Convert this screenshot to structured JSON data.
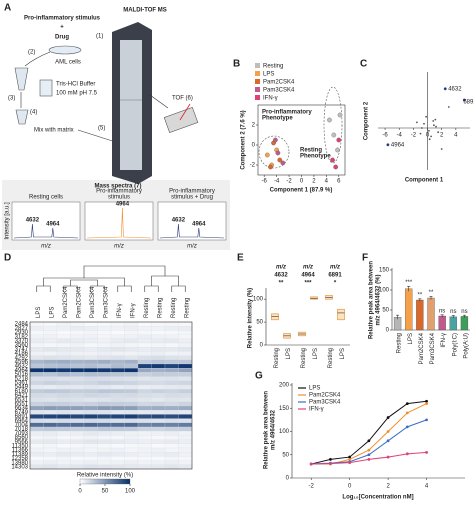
{
  "panel_a": {
    "label": "A",
    "instrument": "MALDI-TOF MS",
    "stimulus": "Pro-inflammatory stimulus",
    "plus": "+",
    "drug": "Drug",
    "step1": "(1)",
    "step2": "(2)",
    "cells": "AML cells",
    "step3": "(3)",
    "buffer": "Tris-HCl Buffer",
    "buffer_conc": "100 mM pH 7.5",
    "step4": "(4)",
    "mix": "Mix with matrix",
    "step5": "(5)",
    "tof": "TOF (6)",
    "spectra_title": "Mass spectra (7)",
    "spectra_x_label": "m/z",
    "spectra_y_label": "Intensity [a.u.]",
    "spectra": [
      {
        "caption": [
          "Resting cells"
        ],
        "peaks": [
          "4632",
          "4964"
        ]
      },
      {
        "caption": [
          "Pro-inflammatory",
          "stimulus"
        ],
        "peaks": [
          "4964"
        ]
      },
      {
        "caption": [
          "Pro-inflammatory",
          "stimulus + Drug"
        ],
        "peaks": [
          "4632",
          "4964"
        ]
      }
    ]
  },
  "panel_b": {
    "label": "B",
    "x_label": "Component 1 (87.9 %)",
    "y_label": "Component 2 (7.6 %)",
    "xlim": [
      -7,
      7
    ],
    "ylim": [
      -3,
      4
    ],
    "xticks": [
      -6,
      -4,
      -2,
      0,
      2,
      4,
      6
    ],
    "yticks": [
      -2,
      0,
      2
    ],
    "annotations": [
      [
        "Pro-inflammatory",
        "Phenotype"
      ],
      [
        "Resting",
        "Phenotype"
      ]
    ],
    "series": [
      {
        "name": "Resting",
        "color": "#bdbdbd",
        "x": [
          4.5,
          5.2,
          5.8,
          6.2
        ],
        "y": [
          2.5,
          1.0,
          -0.5,
          3.0
        ]
      },
      {
        "name": "LPS",
        "color": "#f5a04a",
        "x": [
          -5.5,
          -4.8,
          -4.0
        ],
        "y": [
          -1.0,
          -2.0,
          -0.5
        ]
      },
      {
        "name": "Pam2CSK4",
        "color": "#d9682b",
        "x": [
          -4.5,
          -3.5,
          -5.0
        ],
        "y": [
          0.2,
          -1.5,
          -2.2
        ]
      },
      {
        "name": "Pam3CSK4",
        "color": "#c05a8c",
        "x": [
          -3.8,
          -4.2,
          -3.0
        ],
        "y": [
          -0.8,
          0.5,
          -1.8
        ]
      },
      {
        "name": "IFN-γ",
        "color": "#e0407a",
        "x": [
          5.0,
          5.5,
          6.0
        ],
        "y": [
          -1.5,
          -2.2,
          0.5
        ]
      }
    ]
  },
  "panel_c": {
    "label": "C",
    "x_label": "Component 1",
    "y_label": "Component 2",
    "xlim": [
      -7,
      6
    ],
    "ylim": [
      -3,
      4
    ],
    "xticks": [
      -6,
      -4,
      -2,
      0,
      2,
      4
    ],
    "x": [
      -0.5,
      0.2,
      0.8,
      -1,
      1.2,
      0.5,
      -0.2,
      1.5,
      0.9,
      -0.8,
      0.3,
      1.1,
      2.0,
      3.0,
      -1.5
    ],
    "y": [
      0.3,
      -0.2,
      0.5,
      -0.4,
      0.1,
      -0.6,
      0.8,
      -0.3,
      0.2,
      0.0,
      -0.8,
      0.6,
      -1.5,
      1.5,
      0.4
    ],
    "labeled": [
      {
        "label": "4632",
        "x": 2.5,
        "y": 2.8
      },
      {
        "label": "6891",
        "x": 5.2,
        "y": 2.0
      },
      {
        "label": "4964",
        "x": -5.6,
        "y": -1.2
      }
    ]
  },
  "panel_d": {
    "label": "D",
    "colorbar_label": "Relative intensity (%)",
    "clim": [
      0,
      100
    ],
    "colorbar_ticks": [
      0,
      50,
      100
    ],
    "columns": [
      "LPS",
      "LPS",
      "Pam2CSK4",
      "Pam2CSK4",
      "Pam3CSK4",
      "Pam3CSK4",
      "IFN-γ",
      "IFN-γ",
      "Resting",
      "Resting",
      "Resting",
      "Resting"
    ],
    "rows": [
      "2484",
      "2827",
      "2930",
      "3182",
      "3370",
      "3560",
      "3747",
      "4186",
      "4292",
      "4596",
      "4632",
      "4964",
      "5016",
      "5218",
      "5361",
      "5449",
      "6180",
      "6421",
      "6531",
      "6551",
      "6634",
      "6749",
      "6891",
      "6964",
      "7004",
      "7018",
      "7093",
      "8560",
      "9566",
      "11350",
      "11366",
      "11389",
      "12358",
      "13980",
      "14303"
    ],
    "values": [
      [
        5,
        4,
        6,
        5,
        3,
        4,
        5,
        6,
        3,
        4,
        5,
        4
      ],
      [
        8,
        6,
        7,
        9,
        8,
        6,
        7,
        8,
        6,
        7,
        8,
        9
      ],
      [
        4,
        5,
        3,
        4,
        5,
        4,
        3,
        5,
        4,
        3,
        4,
        5
      ],
      [
        6,
        7,
        5,
        6,
        7,
        5,
        6,
        7,
        8,
        7,
        6,
        5
      ],
      [
        9,
        8,
        10,
        9,
        8,
        7,
        9,
        10,
        8,
        9,
        10,
        8
      ],
      [
        5,
        4,
        5,
        6,
        4,
        5,
        6,
        5,
        4,
        5,
        4,
        6
      ],
      [
        10,
        12,
        11,
        10,
        9,
        11,
        12,
        10,
        9,
        11,
        10,
        12
      ],
      [
        7,
        6,
        8,
        7,
        6,
        8,
        7,
        6,
        7,
        8,
        6,
        7
      ],
      [
        12,
        14,
        13,
        12,
        11,
        13,
        14,
        12,
        15,
        16,
        14,
        13
      ],
      [
        35,
        38,
        40,
        36,
        37,
        39,
        35,
        38,
        25,
        28,
        26,
        27
      ],
      [
        28,
        30,
        32,
        29,
        31,
        27,
        33,
        30,
        92,
        95,
        90,
        96
      ],
      [
        98,
        100,
        95,
        97,
        99,
        96,
        94,
        98,
        42,
        38,
        40,
        45
      ],
      [
        30,
        28,
        32,
        29,
        31,
        30,
        28,
        27,
        22,
        25,
        24,
        23
      ],
      [
        15,
        16,
        14,
        15,
        17,
        16,
        15,
        14,
        12,
        13,
        14,
        12
      ],
      [
        20,
        22,
        21,
        19,
        20,
        23,
        22,
        21,
        18,
        17,
        19,
        20
      ],
      [
        10,
        9,
        11,
        10,
        12,
        11,
        9,
        10,
        8,
        9,
        10,
        11
      ],
      [
        25,
        27,
        26,
        24,
        25,
        28,
        27,
        26,
        20,
        22,
        21,
        23
      ],
      [
        18,
        17,
        19,
        18,
        20,
        19,
        17,
        18,
        16,
        15,
        17,
        16
      ],
      [
        14,
        13,
        15,
        14,
        12,
        13,
        15,
        14,
        12,
        11,
        13,
        12
      ],
      [
        22,
        24,
        23,
        21,
        22,
        25,
        24,
        23,
        19,
        20,
        18,
        21
      ],
      [
        45,
        48,
        47,
        46,
        44,
        49,
        48,
        47,
        38,
        40,
        39,
        41
      ],
      [
        12,
        11,
        13,
        12,
        14,
        13,
        11,
        12,
        10,
        11,
        12,
        10
      ],
      [
        88,
        90,
        92,
        89,
        91,
        87,
        90,
        93,
        85,
        88,
        86,
        90
      ],
      [
        16,
        15,
        17,
        16,
        18,
        17,
        15,
        16,
        14,
        13,
        15,
        14
      ],
      [
        70,
        72,
        68,
        71,
        73,
        69,
        70,
        72,
        60,
        62,
        61,
        63
      ],
      [
        24,
        26,
        25,
        23,
        24,
        27,
        26,
        25,
        21,
        20,
        22,
        23
      ],
      [
        8,
        9,
        7,
        8,
        10,
        9,
        8,
        7,
        6,
        7,
        8,
        6
      ],
      [
        5,
        6,
        4,
        5,
        6,
        5,
        4,
        6,
        5,
        4,
        5,
        6
      ],
      [
        10,
        11,
        9,
        10,
        12,
        11,
        10,
        9,
        8,
        9,
        10,
        8
      ],
      [
        4,
        5,
        3,
        4,
        5,
        4,
        3,
        4,
        5,
        3,
        4,
        5
      ],
      [
        6,
        5,
        7,
        6,
        5,
        6,
        7,
        5,
        6,
        7,
        5,
        6
      ],
      [
        9,
        8,
        10,
        9,
        8,
        10,
        9,
        8,
        7,
        8,
        9,
        7
      ],
      [
        3,
        4,
        5,
        3,
        4,
        5,
        3,
        4,
        4,
        3,
        5,
        4
      ],
      [
        7,
        8,
        6,
        7,
        8,
        6,
        7,
        8,
        6,
        7,
        8,
        6
      ],
      [
        12,
        13,
        11,
        12,
        14,
        13,
        12,
        11,
        10,
        11,
        12,
        10
      ]
    ]
  },
  "panel_e": {
    "label": "E",
    "y_label": "Relative intensity (%)",
    "ylim": [
      0,
      120
    ],
    "yticks": [
      0,
      50,
      100
    ],
    "groups": [
      {
        "title": "m/z",
        "mz": "4632",
        "significance": "**",
        "categories": [
          "Resting",
          "LPS"
        ],
        "values": [
          [
            55,
            62,
            68
          ],
          [
            15,
            20,
            25
          ]
        ]
      },
      {
        "title": "m/z",
        "mz": "4964",
        "significance": "***",
        "categories": [
          "Resting",
          "LPS"
        ],
        "values": [
          [
            20,
            24,
            28
          ],
          [
            100,
            102,
            105
          ]
        ]
      },
      {
        "title": "m/z",
        "mz": "6891",
        "significance": "*",
        "categories": [
          "Resting",
          "LPS"
        ],
        "values": [
          [
            100,
            104,
            108
          ],
          [
            55,
            70,
            78
          ]
        ]
      }
    ]
  },
  "panel_f": {
    "label": "F",
    "y_label": [
      "Relative peak area between",
      "m/z 4964/4632 (%)"
    ],
    "ylim": [
      0,
      150
    ],
    "yticks": [
      0,
      50,
      100,
      150
    ],
    "categories": [
      "Resting",
      "LPS",
      "Pam2CSK4",
      "Pam3CSK4",
      "IFN-γ",
      "Poly(I:C)",
      "Poly(A:U)"
    ],
    "values": [
      32,
      103,
      75,
      80,
      35,
      33,
      34
    ],
    "errors": [
      5,
      6,
      3,
      4,
      3,
      3,
      3
    ],
    "colors": [
      "#b5b5b5",
      "#f5a04a",
      "#d9682b",
      "#e0a070",
      "#c05a8c",
      "#4aa3a0",
      "#3f9f5a"
    ],
    "significance": [
      "***",
      "**",
      "**",
      "ns",
      "ns",
      "ns"
    ]
  },
  "panel_g": {
    "label": "G",
    "x_label": "Log₁₀[Concentration nM]",
    "y_label": [
      "Relative peak area between",
      "m/z 4964/4632"
    ],
    "xlim": [
      -3,
      6
    ],
    "ylim": [
      0,
      200
    ],
    "xticks": [
      -2,
      0,
      2,
      4
    ],
    "yticks": [
      0,
      50,
      100,
      150,
      200
    ],
    "series": [
      {
        "name": "LPS",
        "color": "#111111",
        "x": [
          -2,
          -1,
          0,
          1,
          2,
          3,
          4
        ],
        "y": [
          30,
          40,
          45,
          80,
          130,
          160,
          165
        ]
      },
      {
        "name": "Pam2CSK4",
        "color": "#f0902a",
        "x": [
          -2,
          -1,
          0,
          1,
          2,
          3,
          4
        ],
        "y": [
          30,
          30,
          40,
          60,
          100,
          140,
          160
        ]
      },
      {
        "name": "Pam3CSK4",
        "color": "#3a6fc4",
        "x": [
          -2,
          -1,
          0,
          1,
          2,
          3,
          4
        ],
        "y": [
          30,
          32,
          35,
          50,
          80,
          110,
          125
        ]
      },
      {
        "name": "IFN-γ",
        "color": "#e0407a",
        "x": [
          -2,
          -1,
          0,
          1,
          2,
          3,
          4
        ],
        "y": [
          30,
          31,
          33,
          40,
          45,
          52,
          55
        ]
      }
    ]
  }
}
